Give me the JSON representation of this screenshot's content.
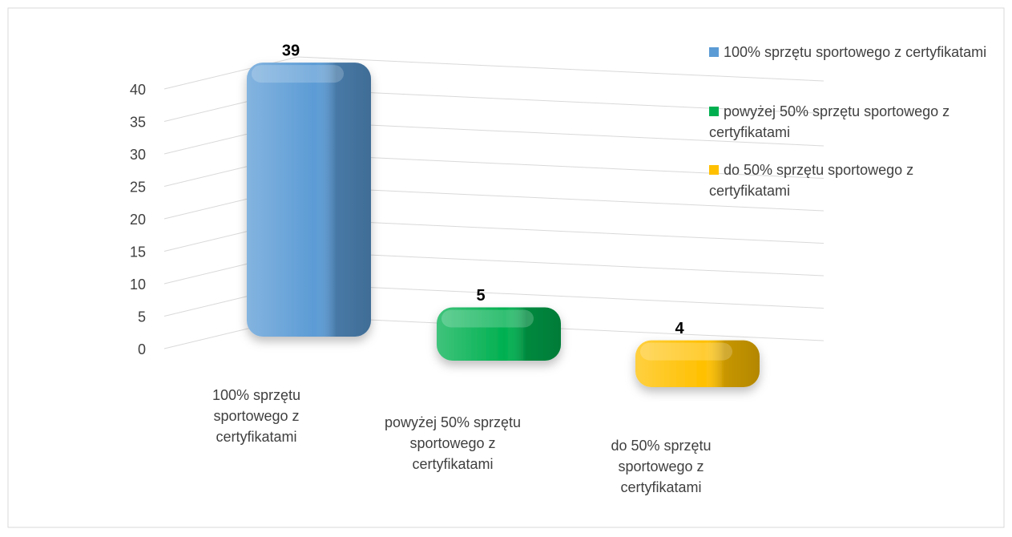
{
  "chart_data": {
    "type": "bar3d",
    "categories": [
      "100% sprzętu sportowego z certyfikatami",
      "powyżej 50% sprzętu sportowego z certyfikatami",
      "do 50% sprzętu sportowego z certyfikatami"
    ],
    "values": [
      39,
      5,
      4
    ],
    "colors": [
      "#5b9bd5",
      "#00b050",
      "#ffc000"
    ],
    "ylim": [
      0,
      40
    ],
    "yticks": [
      0,
      5,
      10,
      15,
      20,
      25,
      30,
      35,
      40
    ],
    "grid": true,
    "legend": "top-right"
  }
}
